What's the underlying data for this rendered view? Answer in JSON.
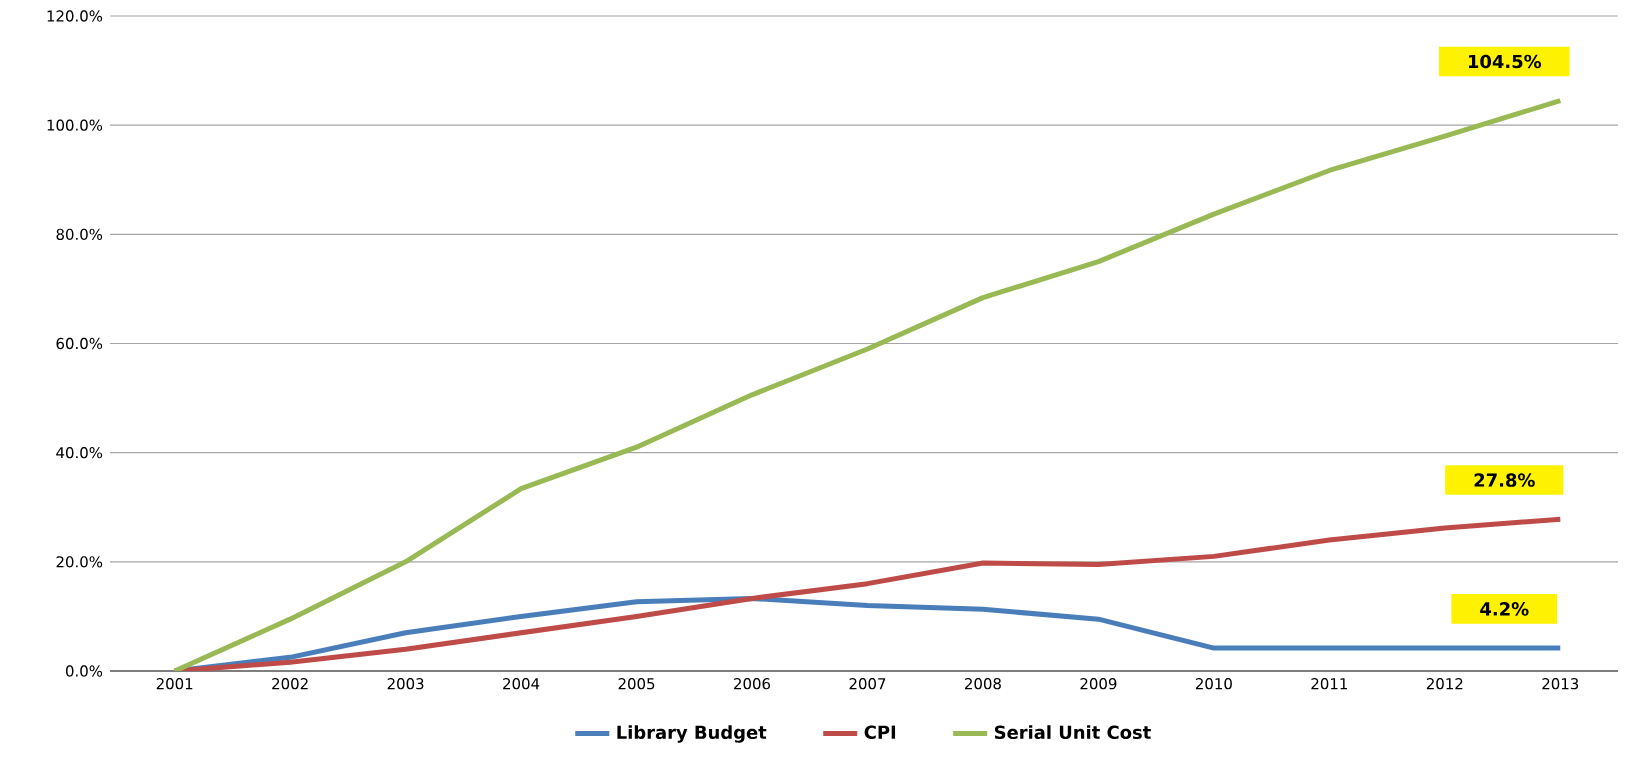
{
  "chart_data": {
    "type": "line",
    "categories": [
      "2001",
      "2002",
      "2003",
      "2004",
      "2005",
      "2006",
      "2007",
      "2008",
      "2009",
      "2010",
      "2011",
      "2012",
      "2013"
    ],
    "series": [
      {
        "name": "Library Budget",
        "color": "#4a7ebb",
        "values": [
          0,
          2.5,
          7,
          10,
          12.7,
          13.3,
          12,
          11.3,
          9.5,
          4.2,
          4.2,
          4.2,
          4.2
        ]
      },
      {
        "name": "CPI",
        "color": "#be4b48",
        "values": [
          0,
          1.6,
          4,
          7,
          10,
          13.3,
          16,
          19.8,
          19.5,
          21,
          24,
          26.2,
          27.8
        ]
      },
      {
        "name": "Serial Unit Cost",
        "color": "#98b954",
        "values": [
          0,
          9.5,
          20,
          33.4,
          41,
          50.6,
          59,
          68.4,
          75,
          83.7,
          91.7,
          98,
          104.5
        ]
      }
    ],
    "ylim": [
      0,
      120
    ],
    "yticks": [
      {
        "value": 0,
        "label": "0.0%"
      },
      {
        "value": 20,
        "label": "20.0%"
      },
      {
        "value": 40,
        "label": "40.0%"
      },
      {
        "value": 60,
        "label": "60.0%"
      },
      {
        "value": 80,
        "label": "80.0%"
      },
      {
        "value": 100,
        "label": "100.0%"
      },
      {
        "value": 120,
        "label": "120.0%"
      }
    ],
    "grid": "y",
    "legend": "bottom",
    "marker": "none",
    "line_style": "solid",
    "annotations": [
      {
        "text": "104.5%",
        "x": "2013",
        "y": 104.5
      },
      {
        "text": "27.8%",
        "x": "2013",
        "y": 27.8
      },
      {
        "text": "4.2%",
        "x": "2013",
        "y": 4.2
      }
    ]
  }
}
